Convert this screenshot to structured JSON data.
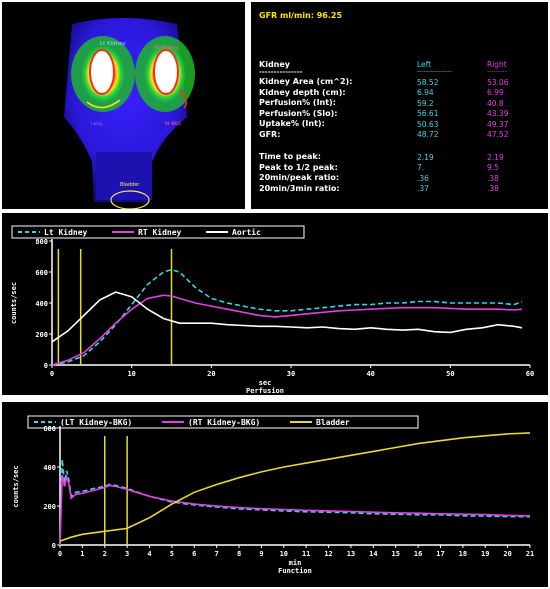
{
  "scan": {
    "left_label": "Lt Kidney",
    "right_label": "Rt Kidney",
    "left_bkg": "Lbkg",
    "right_bkg": "Rt BKG",
    "bladder_label": "Bladder"
  },
  "stats": {
    "gfr_header": "GFR ml/min: 96.25",
    "kidney_header": "Kidney",
    "kidney_underline": "---------------",
    "left_header": "Left",
    "right_header": "Right",
    "left_underline": "----------------",
    "right_underline": "---------",
    "rows": [
      {
        "label": "Kidney Area (cm^2):",
        "left": "58.52",
        "right": "53.06"
      },
      {
        "label": "Kidney depth (cm):",
        "left": "6.94",
        "right": "6.99"
      },
      {
        "label": "Perfusion% (Int):",
        "left": "59.2",
        "right": "40.8"
      },
      {
        "label": "Perfusion% (Slo):",
        "left": "56.61",
        "right": "43.39"
      },
      {
        "label": "Uptake% (Int):",
        "left": "50.63",
        "right": "49.37"
      },
      {
        "label": "GFR:",
        "left": "48.72",
        "right": "47.52"
      }
    ],
    "rows2": [
      {
        "label": "Time to peak:",
        "left": "2.19",
        "right": "2.19"
      },
      {
        "label": "Peak to 1/2 peak:",
        "left": "7.",
        "right": "9.5"
      },
      {
        "label": "20min/peak ratio:",
        "left": ".36",
        "right": ".38"
      },
      {
        "label": "20min/3min ratio:",
        "left": ".37",
        "right": ".38"
      }
    ]
  },
  "chart_data": [
    {
      "type": "line",
      "xlabel": "sec",
      "xlabel2": "Perfusion",
      "ylabel": "counts/sec",
      "xlim": [
        0,
        60
      ],
      "ylim": [
        0,
        800
      ],
      "xticks": [
        "0",
        "10",
        "20",
        "30",
        "40",
        "50",
        "60"
      ],
      "yticks": [
        "0",
        "200",
        "400",
        "600",
        "800"
      ],
      "legend": [
        "Lt Kidney",
        "RT Kidney",
        "Aortic"
      ],
      "markers_x": [
        0.8,
        3.6,
        15
      ],
      "series": [
        {
          "name": "Lt Kidney",
          "color": "#38d6e8",
          "dash": true,
          "x": [
            0,
            2,
            4,
            6,
            8,
            10,
            12,
            14,
            15,
            16,
            18,
            20,
            22,
            24,
            26,
            28,
            30,
            32,
            34,
            36,
            38,
            40,
            42,
            44,
            46,
            48,
            50,
            52,
            54,
            56,
            58,
            59
          ],
          "y": [
            0,
            20,
            60,
            150,
            260,
            390,
            520,
            600,
            615,
            600,
            500,
            430,
            400,
            380,
            360,
            350,
            350,
            360,
            370,
            380,
            390,
            390,
            400,
            400,
            410,
            410,
            400,
            400,
            400,
            400,
            390,
            410
          ]
        },
        {
          "name": "RT Kidney",
          "color": "#e43fe0",
          "dash": false,
          "x": [
            0,
            2,
            4,
            6,
            8,
            10,
            12,
            14,
            15,
            16,
            18,
            20,
            22,
            24,
            26,
            28,
            30,
            32,
            34,
            36,
            38,
            40,
            42,
            44,
            46,
            48,
            50,
            52,
            54,
            56,
            58,
            59
          ],
          "y": [
            0,
            30,
            80,
            170,
            270,
            360,
            430,
            450,
            445,
            430,
            400,
            380,
            360,
            340,
            320,
            310,
            320,
            330,
            340,
            350,
            355,
            360,
            365,
            370,
            370,
            370,
            365,
            360,
            360,
            360,
            355,
            360
          ]
        },
        {
          "name": "Aortic",
          "color": "#ffffff",
          "dash": false,
          "x": [
            0,
            2,
            4,
            6,
            8,
            10,
            12,
            14,
            16,
            18,
            20,
            22,
            24,
            26,
            28,
            30,
            32,
            34,
            36,
            38,
            40,
            42,
            44,
            46,
            48,
            50,
            52,
            54,
            56,
            58,
            59
          ],
          "y": [
            150,
            220,
            320,
            420,
            470,
            440,
            360,
            300,
            270,
            270,
            270,
            260,
            255,
            250,
            250,
            245,
            240,
            245,
            235,
            230,
            240,
            230,
            225,
            230,
            215,
            210,
            230,
            240,
            260,
            250,
            240
          ]
        }
      ]
    },
    {
      "type": "line",
      "xlabel": "min",
      "xlabel2": "Function",
      "ylabel": "counts/sec",
      "xlim": [
        0,
        21
      ],
      "ylim": [
        0,
        600
      ],
      "xticks": [
        "0",
        "1",
        "2",
        "3",
        "4",
        "5",
        "6",
        "7",
        "8",
        "9",
        "10",
        "11",
        "12",
        "13",
        "14",
        "15",
        "16",
        "17",
        "18",
        "19",
        "20",
        "21"
      ],
      "yticks": [
        "0",
        "200",
        "400",
        "600"
      ],
      "legend": [
        "(LT Kidney-BKG)",
        "(RT Kidney-BKG)",
        "Bladder"
      ],
      "markers_x": [
        2,
        3
      ],
      "series": [
        {
          "name": "(LT Kidney-BKG)",
          "color": "#38d6e8",
          "dash": true,
          "x": [
            0,
            0.1,
            0.2,
            0.3,
            0.4,
            0.5,
            0.7,
            1,
            1.5,
            2,
            2.19,
            2.5,
            3,
            4,
            5,
            6,
            7,
            8,
            9,
            10,
            11,
            12,
            13,
            14,
            15,
            16,
            17,
            18,
            19,
            20,
            21
          ],
          "y": [
            0,
            440,
            320,
            380,
            330,
            250,
            270,
            275,
            290,
            300,
            310,
            305,
            290,
            250,
            220,
            205,
            195,
            185,
            180,
            175,
            170,
            168,
            165,
            160,
            158,
            155,
            155,
            150,
            148,
            146,
            145
          ]
        },
        {
          "name": "(RT Kidney-BKG)",
          "color": "#e43fe0",
          "dash": false,
          "x": [
            0,
            0.1,
            0.2,
            0.3,
            0.4,
            0.5,
            0.7,
            1,
            1.5,
            2,
            2.19,
            2.5,
            3,
            4,
            5,
            6,
            7,
            8,
            9,
            10,
            11,
            12,
            13,
            14,
            15,
            16,
            17,
            18,
            19,
            20,
            21
          ],
          "y": [
            0,
            360,
            300,
            350,
            310,
            240,
            260,
            265,
            280,
            295,
            305,
            300,
            285,
            250,
            225,
            210,
            200,
            192,
            186,
            182,
            178,
            175,
            172,
            168,
            165,
            163,
            160,
            158,
            156,
            152,
            150
          ]
        },
        {
          "name": "Bladder",
          "color": "#e8d92c",
          "dash": false,
          "x": [
            0,
            0.5,
            1,
            2,
            3,
            4,
            5,
            6,
            7,
            8,
            9,
            10,
            11,
            12,
            13,
            14,
            15,
            16,
            17,
            18,
            19,
            20,
            21
          ],
          "y": [
            20,
            40,
            55,
            70,
            85,
            140,
            210,
            270,
            310,
            345,
            375,
            400,
            420,
            440,
            460,
            480,
            500,
            520,
            535,
            550,
            560,
            570,
            575
          ]
        }
      ]
    }
  ]
}
